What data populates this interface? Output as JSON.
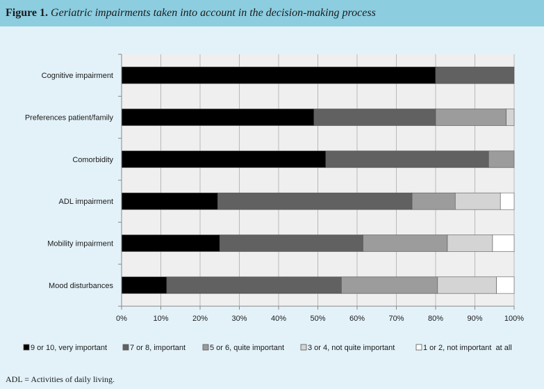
{
  "figure": {
    "label": "Figure 1.",
    "caption": "Geriatric impairments taken into account in the decision-making process"
  },
  "footnote": "ADL = Activities of daily living.",
  "colors": {
    "background": "#e3f2f9",
    "header": "#8ccde0",
    "plot_background": "#efefef",
    "gridline": "#b8b8b8",
    "bar_edge": "#555555"
  },
  "chart_data": {
    "type": "bar",
    "orientation": "horizontal",
    "stacked": true,
    "categories": [
      "Cognitive impairment",
      "Preferences patient/family",
      "Comorbidity",
      "ADL impairment",
      "Mobility impairment",
      "Mood disturbances"
    ],
    "series": [
      {
        "name": "9 or 10, very important",
        "color": "#000000",
        "values": [
          80,
          49,
          52,
          24.5,
          25,
          11.5
        ]
      },
      {
        "name": "7 or 8, important",
        "color": "#616161",
        "values": [
          20,
          31,
          41.5,
          49.5,
          36.5,
          44.5
        ]
      },
      {
        "name": "5 or 6, quite important",
        "color": "#9c9c9c",
        "values": [
          0,
          18,
          6.5,
          11,
          21.5,
          24.5
        ]
      },
      {
        "name": "3 or 4, not quite important",
        "color": "#d4d4d4",
        "values": [
          0,
          2,
          0,
          11.5,
          11.5,
          15
        ]
      },
      {
        "name": "1 or 2, not important  at all",
        "color": "#ffffff",
        "values": [
          0,
          0,
          0,
          3.5,
          5.5,
          4.5
        ]
      }
    ],
    "xlim": [
      0,
      100
    ],
    "xticks": [
      "0%",
      "10%",
      "20%",
      "30%",
      "40%",
      "50%",
      "60%",
      "70%",
      "80%",
      "90%",
      "100%"
    ],
    "grid": true,
    "legend_position": "bottom"
  }
}
